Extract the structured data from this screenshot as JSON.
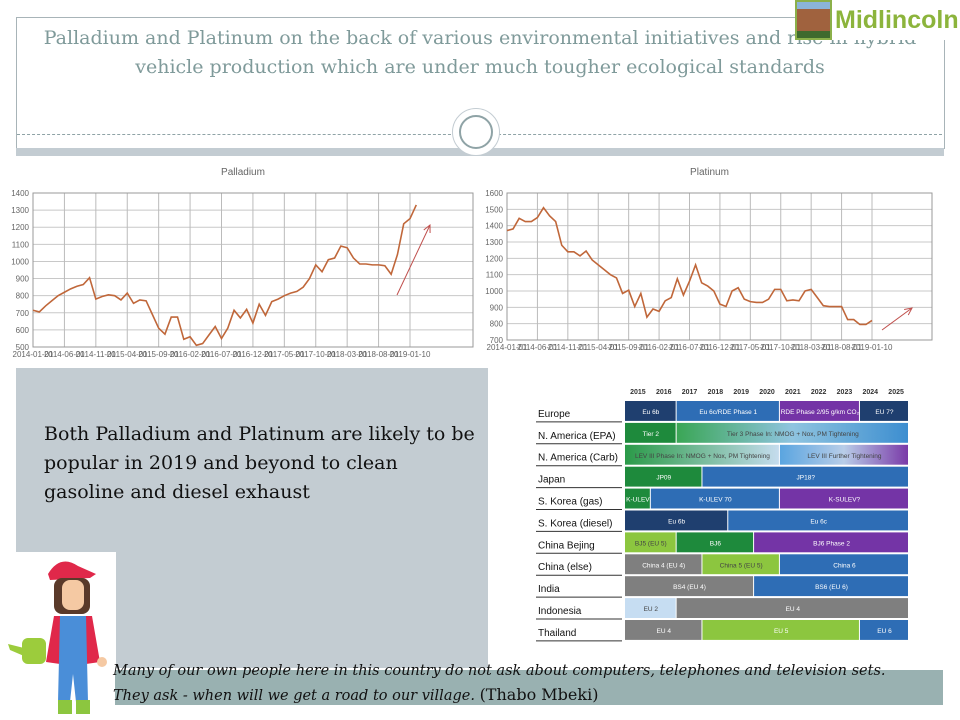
{
  "header": {
    "title": "Palladium and Platinum on the back of various environmental initiatives and rise in hybrid vehicle production which are under much tougher ecological standards"
  },
  "logo": {
    "text": "Midlincoln"
  },
  "chart_data": [
    {
      "type": "line",
      "title": "Palladium",
      "ylim": [
        500,
        1400
      ],
      "yticks": [
        "500",
        "600",
        "700",
        "800",
        "900",
        "1000",
        "1100",
        "1200",
        "1300",
        "1400"
      ],
      "xticks": [
        "2014-01-01",
        "2014-06-01",
        "2014-11-01",
        "2015-04-01",
        "2015-09-01",
        "2016-02-01",
        "2016-07-01",
        "2016-12-01",
        "2017-05-01",
        "2017-10-01",
        "2018-03-01",
        "2018-08-01",
        "2019-01-10"
      ],
      "x_start": "2014-01",
      "x_step": "month",
      "trend_arrow": "up",
      "values": [
        715,
        705,
        740,
        770,
        800,
        820,
        840,
        855,
        865,
        905,
        780,
        795,
        805,
        800,
        775,
        815,
        755,
        775,
        770,
        690,
        610,
        575,
        675,
        675,
        545,
        560,
        510,
        520,
        570,
        620,
        550,
        610,
        715,
        670,
        720,
        640,
        750,
        685,
        765,
        780,
        800,
        815,
        825,
        850,
        900,
        980,
        940,
        1010,
        1020,
        1090,
        1080,
        1020,
        985,
        985,
        980,
        980,
        975,
        925,
        1040,
        1220,
        1250,
        1330
      ],
      "color": "#c0673a"
    },
    {
      "type": "line",
      "title": "Platinum",
      "ylim": [
        700,
        1600
      ],
      "yticks": [
        "700",
        "800",
        "900",
        "1000",
        "1100",
        "1200",
        "1300",
        "1400",
        "1500",
        "1600"
      ],
      "xticks": [
        "2014-01-01",
        "2014-06-01",
        "2014-11-01",
        "2015-04-01",
        "2015-09-01",
        "2016-02-01",
        "2016-07-01",
        "2016-12-01",
        "2017-05-01",
        "2017-10-01",
        "2018-03-01",
        "2018-08-01",
        "2019-01-10"
      ],
      "x_start": "2014-01",
      "x_step": "month",
      "trend_arrow": "up",
      "values": [
        1370,
        1380,
        1445,
        1425,
        1425,
        1450,
        1510,
        1460,
        1425,
        1280,
        1240,
        1240,
        1215,
        1245,
        1190,
        1160,
        1130,
        1100,
        1080,
        985,
        1005,
        905,
        985,
        840,
        890,
        875,
        940,
        960,
        1075,
        975,
        1060,
        1160,
        1050,
        1030,
        1000,
        920,
        905,
        1000,
        1020,
        950,
        935,
        930,
        930,
        950,
        1010,
        1010,
        940,
        945,
        940,
        1000,
        1010,
        960,
        910,
        905,
        905,
        905,
        825,
        825,
        795,
        795,
        820
      ],
      "color": "#c0673a"
    }
  ],
  "left_panel": {
    "text": "Both Palladium and Platinum are likely to be popular in 2019 and beyond to clean gasoline and diesel exhaust"
  },
  "standards_table": {
    "years": [
      "2015",
      "2016",
      "2017",
      "2018",
      "2019",
      "2020",
      "2021",
      "2022",
      "2023",
      "2024",
      "2025"
    ],
    "rows": [
      {
        "region": "Europe",
        "segments": [
          {
            "label": "Eu 6b",
            "start": 0,
            "end": 2,
            "color": "#1f3f6f"
          },
          {
            "label": "Eu 6c/RDE Phase 1",
            "start": 2,
            "end": 6,
            "color": "#2e6db5"
          },
          {
            "label": "RDE Phase 2/95 g/km CO₂",
            "start": 6,
            "end": 9.1,
            "color": "#7434a6"
          },
          {
            "label": "EU 7?",
            "start": 9.1,
            "end": 11,
            "color": "#1f3f6f"
          }
        ]
      },
      {
        "region": "N. America (EPA)",
        "segments": [
          {
            "label": "Tier 2",
            "start": 0,
            "end": 2,
            "color": "#1e8a3c"
          },
          {
            "label": "Tier 3 Phase In: NMOG + Nox, PM Tightening",
            "start": 2,
            "end": 11,
            "color": "linear-gradient(90deg,#3aa655,#8fc4e0 50%,#3d8ed0)",
            "dark": true
          }
        ]
      },
      {
        "region": "N. America (Carb)",
        "segments": [
          {
            "label": "LEV III Phase In: NMOG + Nox, PM Tightening",
            "start": 0,
            "end": 6,
            "color": "linear-gradient(90deg,#2a9a48,#c5dcee)",
            "dark": true
          },
          {
            "label": "LEV III Further Tightening",
            "start": 6,
            "end": 11,
            "color": "linear-gradient(90deg,#5aa5e0,#b8cde8 50%,#7a3aa8)",
            "dark": true
          }
        ]
      },
      {
        "region": "Japan",
        "segments": [
          {
            "label": "JP09",
            "start": 0,
            "end": 3,
            "color": "#1e8a3c"
          },
          {
            "label": "JP18?",
            "start": 3,
            "end": 11,
            "color": "#2e6db5"
          }
        ]
      },
      {
        "region": "S. Korea (gas)",
        "segments": [
          {
            "label": "K-ULEV",
            "start": 0,
            "end": 1,
            "color": "#1e8a3c"
          },
          {
            "label": "K-ULEV 70",
            "start": 1,
            "end": 6,
            "color": "#2e6db5"
          },
          {
            "label": "K-SULEV?",
            "start": 6,
            "end": 11,
            "color": "#7434a6"
          }
        ]
      },
      {
        "region": "S. Korea (diesel)",
        "segments": [
          {
            "label": "Eu 6b",
            "start": 0,
            "end": 4,
            "color": "#1f3f6f"
          },
          {
            "label": "Eu 6c",
            "start": 4,
            "end": 11,
            "color": "#2e6db5"
          }
        ]
      },
      {
        "region": "China Bejing",
        "segments": [
          {
            "label": "BJ5 (EU 5)",
            "start": 0,
            "end": 2,
            "color": "#8cc63f",
            "dark": true
          },
          {
            "label": "BJ6",
            "start": 2,
            "end": 5,
            "color": "#1e8a3c"
          },
          {
            "label": "BJ6 Phase 2",
            "start": 5,
            "end": 11,
            "color": "#7434a6"
          }
        ]
      },
      {
        "region": "China (else)",
        "segments": [
          {
            "label": "China 4 (EU 4)",
            "start": 0,
            "end": 3,
            "color": "#7f7f7f"
          },
          {
            "label": "China 5 (EU 5)",
            "start": 3,
            "end": 6,
            "color": "#8cc63f",
            "dark": true
          },
          {
            "label": "China 6",
            "start": 6,
            "end": 11,
            "color": "#2e6db5"
          }
        ]
      },
      {
        "region": "India",
        "segments": [
          {
            "label": "BS4 (EU 4)",
            "start": 0,
            "end": 5,
            "color": "#7f7f7f"
          },
          {
            "label": "BS6 (EU 6)",
            "start": 5,
            "end": 11,
            "color": "#2e6db5"
          }
        ]
      },
      {
        "region": "Indonesia",
        "segments": [
          {
            "label": "EU 2",
            "start": 0,
            "end": 2,
            "color": "#c6ddf2",
            "dark": true
          },
          {
            "label": "EU 4",
            "start": 2,
            "end": 11,
            "color": "#7f7f7f"
          }
        ]
      },
      {
        "region": "Thailand",
        "segments": [
          {
            "label": "EU 4",
            "start": 0,
            "end": 3,
            "color": "#7f7f7f"
          },
          {
            "label": "EU 5",
            "start": 3,
            "end": 9.1,
            "color": "#8cc63f"
          },
          {
            "label": "EU 6",
            "start": 9.1,
            "end": 11,
            "color": "#2e6db5"
          }
        ]
      }
    ]
  },
  "quote": {
    "line1": "Many of our own people here in this country do not ask about computers, telephones and television sets.",
    "line2": "They ask - when will we get a road to our village.",
    "author": "(Thabo Mbeki)"
  }
}
